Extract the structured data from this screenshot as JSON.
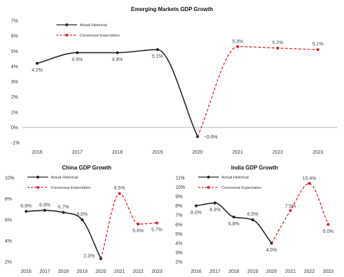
{
  "chart_data": [
    {
      "id": "em",
      "type": "line",
      "title": "Emerging Markets GDP Growth",
      "categories": [
        "2016",
        "2017",
        "2018",
        "2019",
        "2020",
        "2021",
        "2022",
        "2023"
      ],
      "ylim": [
        -1,
        7
      ],
      "yticks": [
        "-1%",
        "0%",
        "1%",
        "2%",
        "3%",
        "4%",
        "5%",
        "6%",
        "7%"
      ],
      "zero_line": true,
      "legend": [
        "Actual Historical",
        "Consensus Expectation"
      ],
      "series": [
        {
          "name": "Actual Historical",
          "style": "solid",
          "color": "#222222",
          "x": [
            "2016",
            "2017",
            "2018",
            "2019",
            "2020"
          ],
          "values": [
            4.2,
            4.9,
            4.9,
            5.1,
            -0.6
          ],
          "labels": [
            "4.2%",
            "4.9%",
            "4.9%",
            "5.1%",
            "−0.6%"
          ]
        },
        {
          "name": "Consensus Expectation",
          "style": "dashed",
          "color": "#e0202a",
          "x": [
            "2020",
            "2021",
            "2022",
            "2023"
          ],
          "values": [
            -0.6,
            5.3,
            5.2,
            5.1
          ],
          "labels": [
            "",
            "5.3%",
            "5.2%",
            "5.1%"
          ]
        }
      ]
    },
    {
      "id": "china",
      "type": "line",
      "title": "China GDP Growth",
      "categories": [
        "2016",
        "2017",
        "2018",
        "2019",
        "2020",
        "2021",
        "2022",
        "2023"
      ],
      "ylim": [
        2,
        10
      ],
      "yticks": [
        "2%",
        "4%",
        "6%",
        "8%",
        "10%"
      ],
      "zero_line": false,
      "legend": [
        "Actual Historical",
        "Consensus Expectation"
      ],
      "series": [
        {
          "name": "Actual Historical",
          "style": "solid",
          "color": "#222222",
          "x": [
            "2016",
            "2017",
            "2018",
            "2019",
            "2020"
          ],
          "values": [
            6.8,
            6.9,
            6.7,
            6.0,
            2.3
          ],
          "labels": [
            "6.8%",
            "6.9%",
            "6.7%",
            "6.0%",
            "2.3%"
          ]
        },
        {
          "name": "Consensus Expectation",
          "style": "dashed",
          "color": "#e0202a",
          "x": [
            "2020",
            "2021",
            "2022",
            "2023"
          ],
          "values": [
            2.3,
            8.5,
            5.6,
            5.7
          ],
          "labels": [
            "",
            "8.5%",
            "5.6%",
            "5.7%"
          ]
        }
      ]
    },
    {
      "id": "india",
      "type": "line",
      "title": "India GDP Growth",
      "categories": [
        "2016",
        "2017",
        "2018",
        "2019",
        "2020",
        "2021",
        "2022",
        "2023"
      ],
      "ylim": [
        2,
        11
      ],
      "yticks": [
        "2%",
        "3%",
        "4%",
        "5%",
        "6%",
        "7%",
        "8%",
        "9%",
        "10%",
        "11%"
      ],
      "zero_line": false,
      "legend": [
        "Actual Historical",
        "Consensus Expectation"
      ],
      "series": [
        {
          "name": "Actual Historical",
          "style": "solid",
          "color": "#222222",
          "x": [
            "2016",
            "2017",
            "2018",
            "2019",
            "2020"
          ],
          "values": [
            8.0,
            8.3,
            6.8,
            6.5,
            4.0
          ],
          "labels": [
            "8.0%",
            "8.3%",
            "6.8%",
            "6.5%",
            "4.0%"
          ]
        },
        {
          "name": "Consensus Expectation",
          "style": "dashed",
          "color": "#e0202a",
          "x": [
            "2020",
            "2021",
            "2022",
            "2023"
          ],
          "values": [
            4.0,
            7.5,
            10.4,
            6.0
          ],
          "labels": [
            "",
            "7.5%",
            "10.4%",
            "6.0%"
          ]
        }
      ]
    }
  ]
}
